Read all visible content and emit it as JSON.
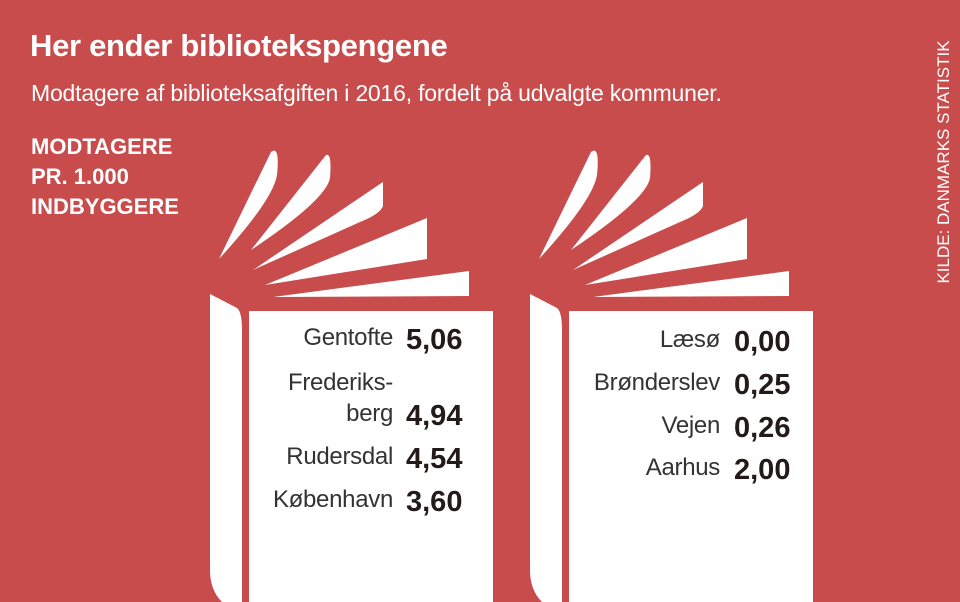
{
  "header": {
    "title": "Her ender bibliotekspengene",
    "subtitle": "Modtagere af biblioteksafgiften i 2016, fordelt på udvalgte kommuner.",
    "unit_lines": [
      "MODTAGERE",
      "PR. 1.000",
      "INDBYGGERE"
    ],
    "source": "KILDE: DANMARKS STATISTIK"
  },
  "colors": {
    "background": "#c94c4d",
    "page": "#ffffff",
    "text": "#231a1a"
  },
  "chart_data": {
    "type": "table",
    "title": "Her ender bibliotekspengene",
    "unit": "Modtagere pr. 1.000 indbyggere",
    "tables": [
      {
        "name": "left-book",
        "rows": [
          {
            "label": "Gentofte",
            "label_lines": [
              "Gentofte"
            ],
            "value": 5.06,
            "display": "5,06"
          },
          {
            "label": "Frederiksberg",
            "label_lines": [
              "Frederiks-",
              "berg"
            ],
            "value": 4.94,
            "display": "4,94"
          },
          {
            "label": "Rudersdal",
            "label_lines": [
              "Rudersdal"
            ],
            "value": 4.54,
            "display": "4,54"
          },
          {
            "label": "København",
            "label_lines": [
              "København"
            ],
            "value": 3.6,
            "display": "3,60"
          }
        ]
      },
      {
        "name": "right-book",
        "rows": [
          {
            "label": "Læsø",
            "label_lines": [
              "Læsø"
            ],
            "value": 0.0,
            "display": "0,00"
          },
          {
            "label": "Brønderslev",
            "label_lines": [
              "Brønderslev"
            ],
            "value": 0.25,
            "display": "0,25"
          },
          {
            "label": "Vejen",
            "label_lines": [
              "Vejen"
            ],
            "value": 0.26,
            "display": "0,26"
          },
          {
            "label": "Aarhus",
            "label_lines": [
              "Aarhus"
            ],
            "value": 2.0,
            "display": "2,00"
          }
        ]
      }
    ]
  }
}
